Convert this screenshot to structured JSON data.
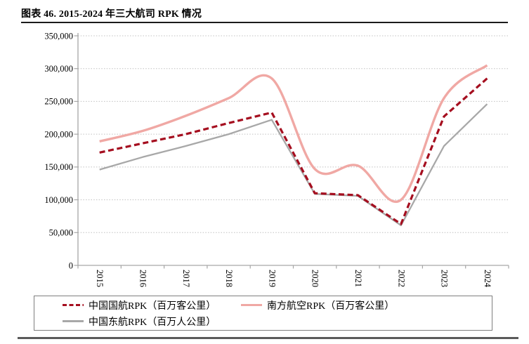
{
  "page": {
    "title": "图表 46. 2015-2024 年三大航司 RPK 情况"
  },
  "chart_data": {
    "type": "line",
    "title": "图表 46. 2015-2024 年三大航司 RPK 情况",
    "categories": [
      "2015",
      "2016",
      "2017",
      "2018",
      "2019",
      "2020",
      "2021",
      "2022",
      "2023",
      "2024"
    ],
    "series": [
      {
        "name": "中国国航RPK（百万客公里）",
        "color": "#a50e1f",
        "line_style": "dashed",
        "smooth": false,
        "values": [
          172000,
          186000,
          200000,
          217000,
          233000,
          110000,
          107000,
          63000,
          227000,
          285000
        ]
      },
      {
        "name": "南方航空RPK（百万客公里）",
        "color": "#f0a8a4",
        "line_style": "solid",
        "smooth": true,
        "values": [
          189000,
          205000,
          228000,
          255000,
          285000,
          147000,
          152000,
          100000,
          255000,
          305000
        ]
      },
      {
        "name": "中国东航RPK（百万人公里）",
        "color": "#a8a8a8",
        "line_style": "solid",
        "smooth": false,
        "values": [
          146000,
          165000,
          182000,
          200000,
          222000,
          109000,
          106000,
          61000,
          182000,
          246000
        ]
      }
    ],
    "xlabel": "",
    "ylabel": "",
    "ylim": [
      0,
      350000
    ],
    "ytick_step": 50000,
    "ytick_labels": [
      "0",
      "50,000",
      "100,000",
      "150,000",
      "200,000",
      "250,000",
      "300,000",
      "350,000"
    ],
    "grid": "horizontal-dotted",
    "legend_position": "bottom-boxed",
    "axis_color": "#a6a6a6",
    "gridline_color": "#c0c0c0"
  }
}
